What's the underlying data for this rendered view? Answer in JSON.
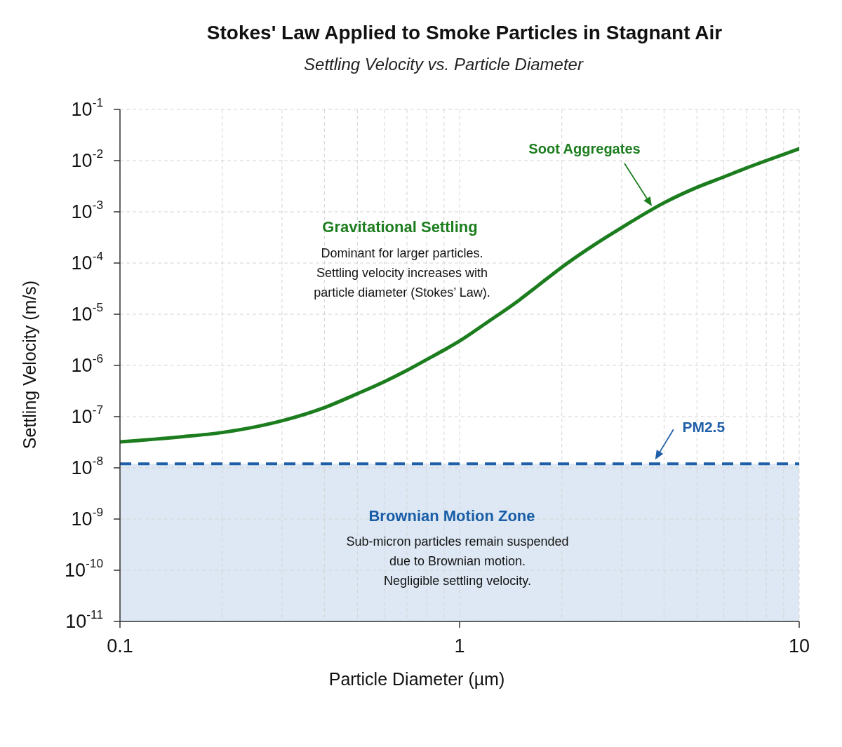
{
  "chart_data": {
    "type": "line",
    "title": "Stokes' Law Applied to Smoke Particles in Stagnant Air",
    "subtitle": "Settling Velocity vs. Particle Diameter",
    "xlabel": "Particle Diameter (µm)",
    "ylabel": "Settling Velocity (m/s)",
    "x": [
      0.1,
      0.15,
      0.2,
      0.25,
      0.3,
      0.4,
      0.5,
      0.6,
      0.7,
      0.8,
      0.9,
      1,
      1.2,
      1.5,
      1.7,
      2,
      2.5,
      3,
      4,
      5,
      6,
      7,
      8,
      10
    ],
    "series": [
      {
        "color": "#1c7d1e",
        "values": [
          3.2e-08,
          4e-08,
          4.9e-08,
          6.3e-08,
          8.3e-08,
          1.5e-07,
          2.8e-07,
          4.8e-07,
          8e-07,
          1.3e-06,
          2e-06,
          3e-06,
          6.8e-06,
          1.9e-05,
          3.6e-05,
          8.3e-05,
          0.00023,
          0.00049,
          0.0015,
          0.003,
          0.0048,
          0.0072,
          0.01,
          0.017
        ]
      }
    ],
    "log": "xy",
    "xlim": [
      0.1,
      10
    ],
    "ylim": [
      1e-11,
      0.1
    ],
    "xticks": [
      0.1,
      {
        "value": 0.2,
        "label": null
      },
      {
        "value": 0.3,
        "label": null
      },
      {
        "value": 0.4,
        "label": null
      },
      {
        "value": 0.5,
        "label": null
      },
      {
        "value": 0.6,
        "label": null
      },
      {
        "value": 0.7,
        "label": null
      },
      {
        "value": 0.8,
        "label": null
      },
      {
        "value": 0.9,
        "label": null
      },
      1,
      {
        "value": 2,
        "label": null
      },
      {
        "value": 3,
        "label": null
      },
      {
        "value": 4,
        "label": null
      },
      {
        "value": 5,
        "label": null
      },
      {
        "value": 6,
        "label": null
      },
      {
        "value": 7,
        "label": null
      },
      {
        "value": 8,
        "label": null
      },
      {
        "value": 9,
        "label": null
      },
      10
    ],
    "yticks": [
      {
        "value": 1e-11,
        "label": "10$^{-11}$"
      },
      {
        "value": 1e-10,
        "label": "10$^{-10}$"
      },
      {
        "value": 1e-09,
        "label": "10$^{-9}$"
      },
      {
        "value": 1e-08,
        "label": "10$^{-8}$"
      },
      {
        "value": 1e-07,
        "label": "10$^{-7}$"
      },
      {
        "value": 1e-06,
        "label": "10$^{-6}$"
      },
      {
        "value": 1e-05,
        "label": "10$^{-5}$"
      },
      {
        "value": 0.0001,
        "label": "10$^{-4}$"
      },
      {
        "value": 0.001,
        "label": "10$^{-3}$"
      },
      {
        "value": 0.01,
        "label": "10$^{-2}$"
      },
      {
        "value": 0.1,
        "label": "10$^{-1}$"
      }
    ],
    "grid": true,
    "ref_lines": [
      {
        "axis": "y",
        "value": 1.2e-08,
        "label": "PM2.5",
        "color": "#1f5fa8",
        "line_style": "dashed"
      }
    ],
    "bands": [
      {
        "axis": "y",
        "from": 1e-11,
        "to": 1.2e-08,
        "label": "Brownian Motion Zone",
        "color": "#dde8f4"
      }
    ],
    "annotations": [
      "Gravitational Settling",
      "Dominant for larger particles.\nSettling velocity increases with\nparticle diameter (Stokes’ Law).",
      "Soot Aggregates",
      "Sub-micron particles remain suspended\ndue to Brownian motion.\nNegligible settling velocity."
    ]
  }
}
